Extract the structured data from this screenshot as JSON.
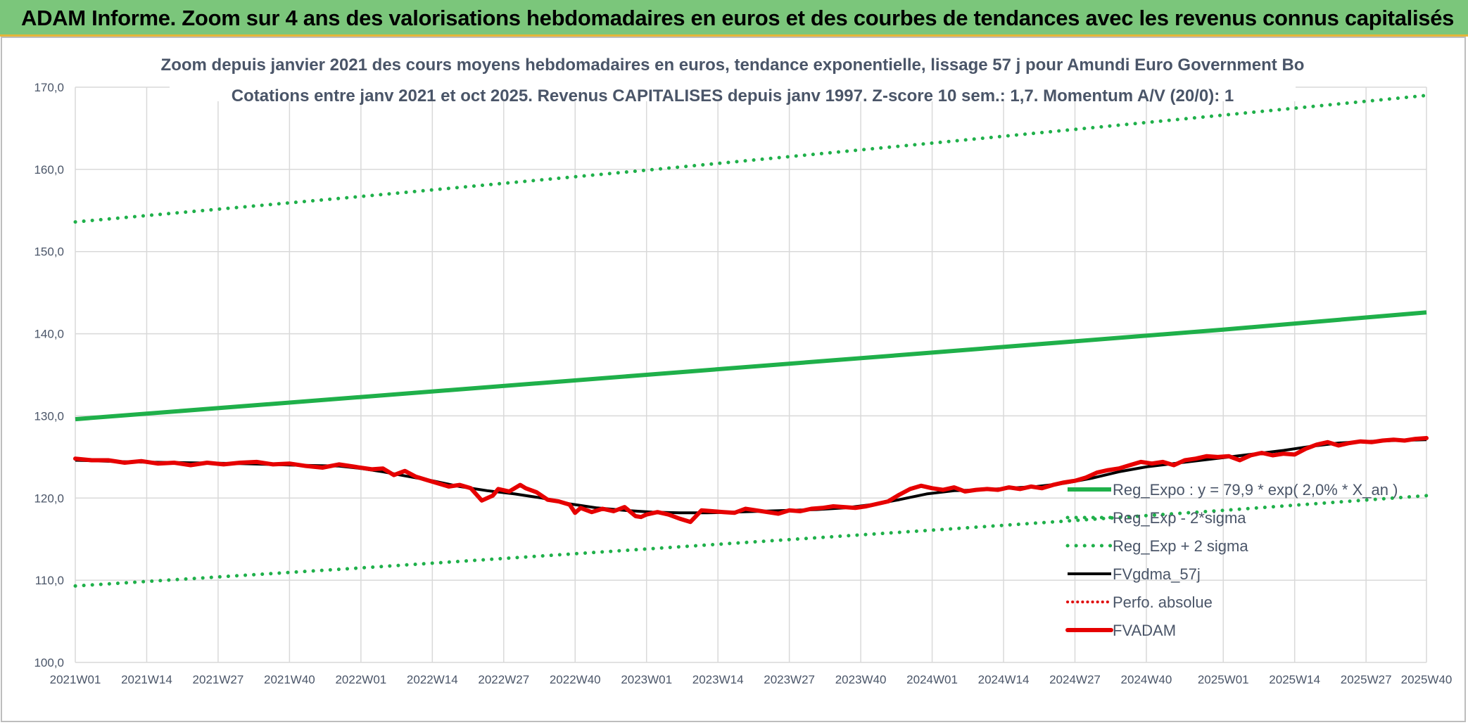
{
  "header": {
    "title": "ADAM Informe. Zoom sur 4 ans des valorisations hebdomadaires en euros et des courbes de tendances avec les revenus connus capitalisés"
  },
  "colors": {
    "header_bg": "#7bc67b",
    "header_border": "#e5b53a",
    "reg_expo": "#1fb04a",
    "sigma": "#1fb04a",
    "fvgdma": "#000000",
    "perfo": "#e00000",
    "fvadam": "#e60000",
    "grid": "#d9d9d9"
  },
  "chart_data": {
    "type": "line",
    "title_line1": "Zoom depuis janvier 2021 des cours moyens hebdomadaires en euros, tendance exponentielle, lissage 57 j pour Amundi Euro Government Bo",
    "title_line2": "Cotations entre janv 2021 et oct 2025. Revenus CAPITALISES depuis janv 1997. Z-score 10 sem.: 1,7. Momentum A/V (20/0): 1",
    "ylim": [
      100,
      170
    ],
    "yticks": [
      "100,0",
      "110,0",
      "120,0",
      "130,0",
      "140,0",
      "150,0",
      "160,0",
      "170,0"
    ],
    "ytick_values": [
      100,
      110,
      120,
      130,
      140,
      150,
      160,
      170
    ],
    "xlim": [
      0,
      246
    ],
    "xticks": [
      "2021W01",
      "2021W14",
      "2021W27",
      "2021W40",
      "2022W01",
      "2022W14",
      "2022W27",
      "2022W40",
      "2023W01",
      "2023W14",
      "2023W27",
      "2023W40",
      "2024W01",
      "2024W14",
      "2024W27",
      "2024W40",
      "2025W01",
      "2025W14",
      "2025W27",
      "2025W40"
    ],
    "xtick_values": [
      0,
      13,
      26,
      39,
      52,
      65,
      78,
      91,
      104,
      117,
      130,
      143,
      156,
      169,
      182,
      195,
      209,
      222,
      235,
      246
    ],
    "series": [
      {
        "name": "Reg_Expo : y = 79,9 * exp( 2,0% * X_an )",
        "style": "solid-green",
        "x": [
          0,
          52,
          104,
          156,
          209,
          246
        ],
        "y": [
          129.6,
          132.3,
          135.0,
          137.7,
          140.5,
          142.6
        ]
      },
      {
        "name": "Reg_Exp - 2*sigma",
        "style": "dotted-green",
        "x": [
          0,
          52,
          104,
          156,
          209,
          246
        ],
        "y": [
          109.3,
          111.5,
          113.8,
          116.1,
          118.5,
          120.3
        ]
      },
      {
        "name": "Reg_Exp + 2 sigma",
        "style": "dotted-green",
        "x": [
          0,
          52,
          104,
          156,
          209,
          246
        ],
        "y": [
          153.6,
          156.7,
          159.9,
          163.2,
          166.6,
          169.0
        ]
      },
      {
        "name": "FVgdma_57j",
        "style": "solid-black",
        "x": [
          0,
          10,
          20,
          30,
          40,
          48,
          52,
          56,
          60,
          65,
          70,
          75,
          80,
          85,
          90,
          95,
          100,
          105,
          110,
          115,
          120,
          125,
          130,
          135,
          140,
          145,
          150,
          155,
          160,
          165,
          170,
          175,
          180,
          185,
          190,
          195,
          200,
          205,
          210,
          215,
          220,
          225,
          230,
          235,
          240,
          246
        ],
        "y": [
          124.6,
          124.4,
          124.3,
          124.2,
          124.0,
          123.9,
          123.6,
          123.2,
          122.7,
          122.1,
          121.4,
          120.9,
          120.5,
          120.0,
          119.3,
          118.8,
          118.5,
          118.3,
          118.2,
          118.2,
          118.3,
          118.4,
          118.5,
          118.6,
          118.8,
          119.2,
          119.8,
          120.5,
          120.9,
          121.0,
          121.2,
          121.4,
          121.8,
          122.4,
          123.2,
          123.8,
          124.2,
          124.6,
          125.0,
          125.4,
          125.8,
          126.3,
          126.7,
          126.9,
          127.0,
          127.1
        ]
      },
      {
        "name": "Perfo. absolue",
        "style": "dotted-red",
        "x": [],
        "y": []
      },
      {
        "name": "FVADAM",
        "style": "solid-red-thick",
        "x": [
          0,
          3,
          6,
          9,
          12,
          15,
          18,
          21,
          24,
          27,
          30,
          33,
          36,
          39,
          42,
          45,
          48,
          51,
          54,
          56,
          58,
          60,
          62,
          64,
          66,
          68,
          70,
          72,
          74,
          76,
          77,
          79,
          81,
          82,
          84,
          86,
          88,
          90,
          91,
          92,
          94,
          96,
          98,
          100,
          102,
          103,
          104,
          106,
          108,
          110,
          112,
          114,
          116,
          118,
          120,
          122,
          124,
          126,
          128,
          130,
          132,
          134,
          136,
          138,
          140,
          142,
          144,
          146,
          148,
          150,
          152,
          154,
          156,
          158,
          160,
          162,
          164,
          166,
          168,
          170,
          172,
          174,
          176,
          178,
          180,
          182,
          184,
          186,
          188,
          190,
          192,
          194,
          196,
          198,
          200,
          202,
          204,
          206,
          208,
          210,
          212,
          214,
          216,
          218,
          220,
          222,
          224,
          226,
          228,
          230,
          232,
          234,
          236,
          238,
          240,
          242,
          244,
          246
        ],
        "y": [
          124.8,
          124.6,
          124.6,
          124.3,
          124.5,
          124.2,
          124.3,
          124.0,
          124.3,
          124.1,
          124.3,
          124.4,
          124.1,
          124.2,
          123.9,
          123.7,
          124.1,
          123.8,
          123.5,
          123.6,
          122.8,
          123.3,
          122.6,
          122.2,
          121.8,
          121.4,
          121.6,
          121.2,
          119.7,
          120.3,
          121.1,
          120.8,
          121.6,
          121.2,
          120.7,
          119.8,
          119.6,
          119.2,
          118.2,
          118.8,
          118.3,
          118.7,
          118.4,
          118.9,
          117.8,
          117.7,
          118.0,
          118.3,
          118.0,
          117.5,
          117.1,
          118.5,
          118.4,
          118.3,
          118.2,
          118.7,
          118.5,
          118.3,
          118.1,
          118.5,
          118.4,
          118.7,
          118.8,
          119.0,
          118.9,
          118.8,
          119.0,
          119.3,
          119.6,
          120.4,
          121.1,
          121.5,
          121.2,
          121.0,
          121.3,
          120.8,
          121.0,
          121.1,
          121.0,
          121.3,
          121.1,
          121.4,
          121.2,
          121.6,
          121.9,
          122.1,
          122.5,
          123.1,
          123.4,
          123.6,
          124.0,
          124.4,
          124.2,
          124.4,
          124.0,
          124.6,
          124.8,
          125.1,
          125.0,
          125.1,
          124.6,
          125.2,
          125.5,
          125.2,
          125.4,
          125.3,
          126.0,
          126.5,
          126.8,
          126.4,
          126.7,
          126.9,
          126.8,
          127.0,
          127.1,
          127.0,
          127.2,
          127.3
        ]
      }
    ],
    "legend_position": "bottom-right"
  }
}
